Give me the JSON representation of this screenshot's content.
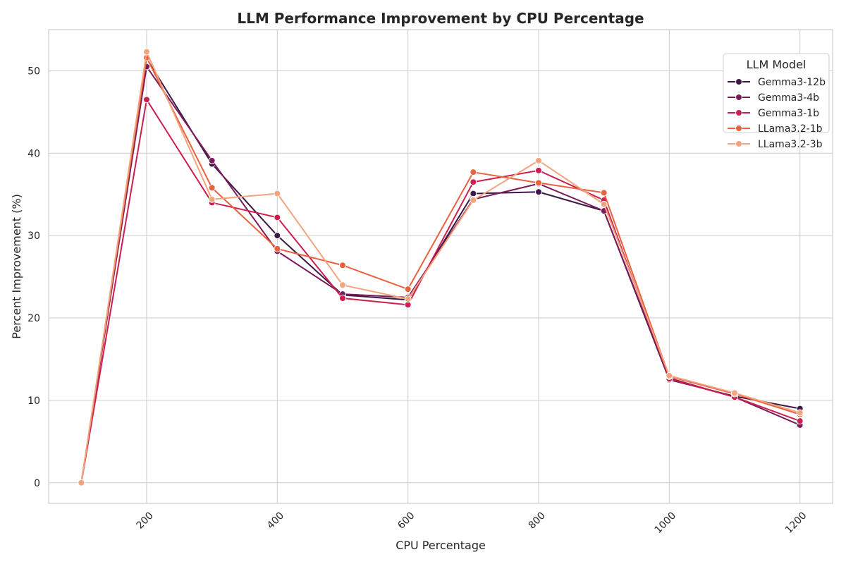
{
  "chart_data": {
    "type": "line",
    "title": "LLM Performance Improvement by CPU Percentage",
    "xlabel": "CPU Percentage",
    "ylabel": "Percent Improvement (%)",
    "xlim": [
      50,
      1250
    ],
    "ylim": [
      -2.5,
      55
    ],
    "xticks": [
      200,
      400,
      600,
      800,
      1000,
      1200
    ],
    "yticks": [
      0,
      10,
      20,
      30,
      40,
      50
    ],
    "grid": true,
    "legend_title": "LLM Model",
    "legend_position": "top-right",
    "x": [
      100,
      200,
      300,
      400,
      500,
      600,
      700,
      800,
      900,
      1000,
      1100,
      1200
    ],
    "series": [
      {
        "name": "Gemma3-12b",
        "color": "#3a1a44",
        "values": [
          0,
          51.5,
          38.7,
          30.0,
          22.8,
          22.2,
          35.1,
          35.3,
          33.0,
          12.5,
          10.5,
          9.0
        ]
      },
      {
        "name": "Gemma3-4b",
        "color": "#7d1a5a",
        "values": [
          0,
          50.5,
          39.1,
          28.1,
          22.9,
          22.5,
          34.4,
          36.3,
          33.0,
          12.7,
          10.4,
          7.0
        ]
      },
      {
        "name": "Gemma3-1b",
        "color": "#cc1e50",
        "values": [
          0,
          46.5,
          34.0,
          32.2,
          22.4,
          21.6,
          36.5,
          37.9,
          34.3,
          12.6,
          10.4,
          7.5
        ]
      },
      {
        "name": "LLama3.2-1b",
        "color": "#e9623f",
        "values": [
          0,
          51.6,
          35.8,
          28.4,
          26.4,
          23.5,
          37.7,
          36.4,
          35.2,
          12.9,
          10.8,
          8.3
        ]
      },
      {
        "name": "LLama3.2-3b",
        "color": "#f3a47c",
        "values": [
          0,
          52.3,
          34.4,
          35.1,
          24.0,
          22.3,
          34.3,
          39.1,
          33.8,
          13.0,
          10.9,
          8.5
        ]
      }
    ]
  }
}
